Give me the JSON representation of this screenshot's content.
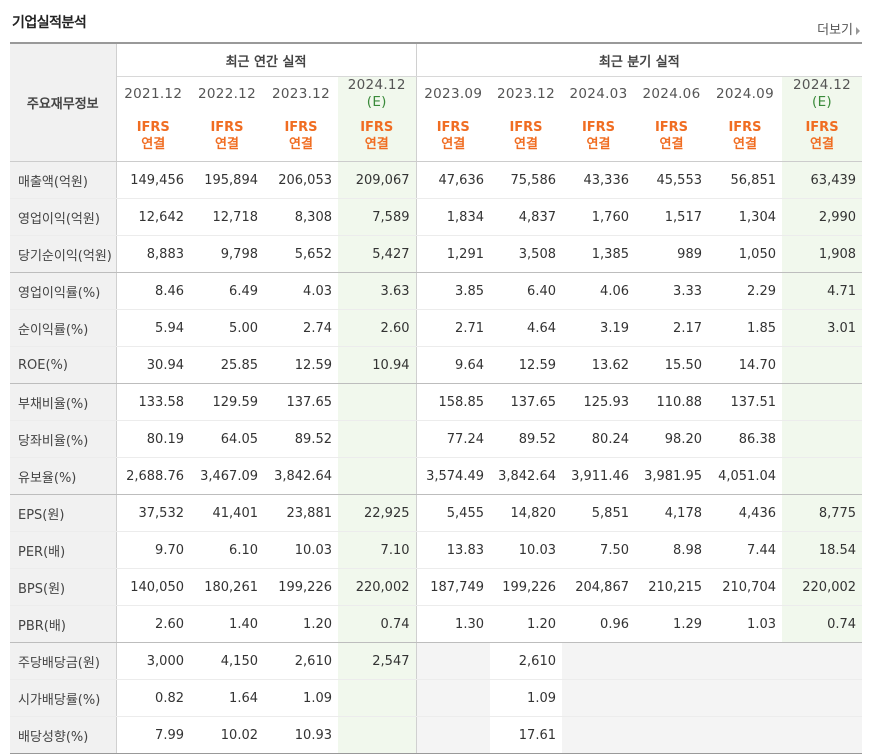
{
  "title": "기업실적분석",
  "more_label": "더보기",
  "header": {
    "row_label": "주요재무정보",
    "annual_group": "최근 연간 실적",
    "quarter_group": "최근 분기 실적",
    "annual_periods": [
      {
        "year": "2021.12",
        "est": ""
      },
      {
        "year": "2022.12",
        "est": ""
      },
      {
        "year": "2023.12",
        "est": ""
      },
      {
        "year": "2024.12",
        "est": "(E)"
      }
    ],
    "quarter_periods": [
      {
        "year": "2023.09",
        "est": ""
      },
      {
        "year": "2023.12",
        "est": ""
      },
      {
        "year": "2024.03",
        "est": ""
      },
      {
        "year": "2024.06",
        "est": ""
      },
      {
        "year": "2024.09",
        "est": ""
      },
      {
        "year": "2024.12",
        "est": "(E)"
      }
    ],
    "ifrs_top": "IFRS",
    "ifrs_bottom": "연결"
  },
  "rows": [
    {
      "label": "매출액(억원)",
      "values": [
        "149,456",
        "195,894",
        "206,053",
        "209,067",
        "47,636",
        "75,586",
        "43,336",
        "45,553",
        "56,851",
        "63,439"
      ]
    },
    {
      "label": "영업이익(억원)",
      "values": [
        "12,642",
        "12,718",
        "8,308",
        "7,589",
        "1,834",
        "4,837",
        "1,760",
        "1,517",
        "1,304",
        "2,990"
      ]
    },
    {
      "label": "당기순이익(억원)",
      "values": [
        "8,883",
        "9,798",
        "5,652",
        "5,427",
        "1,291",
        "3,508",
        "1,385",
        "989",
        "1,050",
        "1,908"
      ]
    },
    {
      "label": "영업이익률(%)",
      "values": [
        "8.46",
        "6.49",
        "4.03",
        "3.63",
        "3.85",
        "6.40",
        "4.06",
        "3.33",
        "2.29",
        "4.71"
      ]
    },
    {
      "label": "순이익률(%)",
      "values": [
        "5.94",
        "5.00",
        "2.74",
        "2.60",
        "2.71",
        "4.64",
        "3.19",
        "2.17",
        "1.85",
        "3.01"
      ]
    },
    {
      "label": "ROE(%)",
      "values": [
        "30.94",
        "25.85",
        "12.59",
        "10.94",
        "9.64",
        "12.59",
        "13.62",
        "15.50",
        "14.70",
        ""
      ]
    },
    {
      "label": "부채비율(%)",
      "values": [
        "133.58",
        "129.59",
        "137.65",
        "",
        "158.85",
        "137.65",
        "125.93",
        "110.88",
        "137.51",
        ""
      ]
    },
    {
      "label": "당좌비율(%)",
      "values": [
        "80.19",
        "64.05",
        "89.52",
        "",
        "77.24",
        "89.52",
        "80.24",
        "98.20",
        "86.38",
        ""
      ]
    },
    {
      "label": "유보율(%)",
      "values": [
        "2,688.76",
        "3,467.09",
        "3,842.64",
        "",
        "3,574.49",
        "3,842.64",
        "3,911.46",
        "3,981.95",
        "4,051.04",
        ""
      ]
    },
    {
      "label": "EPS(원)",
      "values": [
        "37,532",
        "41,401",
        "23,881",
        "22,925",
        "5,455",
        "14,820",
        "5,851",
        "4,178",
        "4,436",
        "8,775"
      ]
    },
    {
      "label": "PER(배)",
      "values": [
        "9.70",
        "6.10",
        "10.03",
        "7.10",
        "13.83",
        "10.03",
        "7.50",
        "8.98",
        "7.44",
        "18.54"
      ]
    },
    {
      "label": "BPS(원)",
      "values": [
        "140,050",
        "180,261",
        "199,226",
        "220,002",
        "187,749",
        "199,226",
        "204,867",
        "210,215",
        "210,704",
        "220,002"
      ]
    },
    {
      "label": "PBR(배)",
      "values": [
        "2.60",
        "1.40",
        "1.20",
        "0.74",
        "1.30",
        "1.20",
        "0.96",
        "1.29",
        "1.03",
        "0.74"
      ]
    },
    {
      "label": "주당배당금(원)",
      "values": [
        "3,000",
        "4,150",
        "2,610",
        "2,547",
        "",
        "2,610",
        "",
        "",
        "",
        ""
      ]
    },
    {
      "label": "시가배당률(%)",
      "values": [
        "0.82",
        "1.64",
        "1.09",
        "",
        "",
        "1.09",
        "",
        "",
        "",
        ""
      ]
    },
    {
      "label": "배당성향(%)",
      "values": [
        "7.99",
        "10.02",
        "10.93",
        "",
        "",
        "17.61",
        "",
        "",
        "",
        ""
      ]
    }
  ]
}
